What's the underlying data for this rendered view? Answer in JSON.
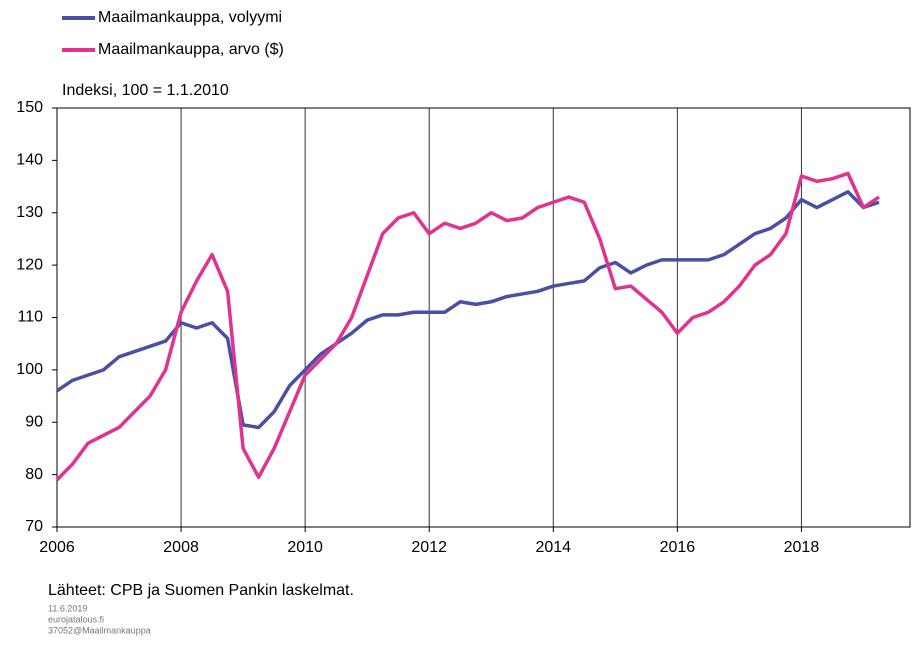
{
  "chart_data": {
    "type": "line",
    "subtitle": "Indeksi, 100 = 1.1.2010",
    "source": "Lähteet: CPB ja Suomen Pankin laskelmat.",
    "footnotes": [
      "11.6.2019",
      "eurojatalous.fi",
      "37052@Maailmankauppa"
    ],
    "x": [
      2006.0,
      2006.25,
      2006.5,
      2006.75,
      2007.0,
      2007.25,
      2007.5,
      2007.75,
      2008.0,
      2008.25,
      2008.5,
      2008.75,
      2009.0,
      2009.25,
      2009.5,
      2009.75,
      2010.0,
      2010.25,
      2010.5,
      2010.75,
      2011.0,
      2011.25,
      2011.5,
      2011.75,
      2012.0,
      2012.25,
      2012.5,
      2012.75,
      2013.0,
      2013.25,
      2013.5,
      2013.75,
      2014.0,
      2014.25,
      2014.5,
      2014.75,
      2015.0,
      2015.25,
      2015.5,
      2015.75,
      2016.0,
      2016.25,
      2016.5,
      2016.75,
      2017.0,
      2017.25,
      2017.5,
      2017.75,
      2018.0,
      2018.25,
      2018.5,
      2018.75,
      2019.0,
      2019.25
    ],
    "series": [
      {
        "name": "Maailmankauppa, volyymi",
        "color": "#4a4fa3",
        "values": [
          96,
          98,
          99,
          100,
          102.5,
          103.5,
          104.5,
          105.5,
          109,
          108,
          109,
          106,
          89.5,
          89,
          92,
          97,
          100,
          103,
          105,
          107,
          109.5,
          110.5,
          110.5,
          111,
          111,
          111,
          113,
          112.5,
          113,
          114,
          114.5,
          115,
          116,
          116.5,
          117,
          119.5,
          120.5,
          118.5,
          120,
          121,
          121,
          121,
          121,
          122,
          124,
          126,
          127,
          129,
          132.5,
          131,
          132.5,
          134,
          131,
          132
        ]
      },
      {
        "name": "Maailmankauppa, arvo ($)",
        "color": "#e0338f",
        "values": [
          79,
          82,
          86,
          87.5,
          89,
          92,
          95,
          100,
          111,
          117,
          122,
          115,
          85,
          79.5,
          85,
          92,
          99,
          102,
          105,
          110,
          118,
          126,
          129,
          130,
          126,
          128,
          127,
          128,
          130,
          128.5,
          129,
          131,
          132,
          133,
          132,
          125,
          115.5,
          116,
          113.5,
          111,
          107,
          110,
          111,
          113,
          116,
          120,
          122,
          126,
          137,
          136,
          136.5,
          137.5,
          131,
          133
        ]
      }
    ],
    "xlim": [
      2006,
      2019.75
    ],
    "xticks": [
      2006,
      2008,
      2010,
      2012,
      2014,
      2016,
      2018
    ],
    "ylim": [
      70,
      150
    ],
    "yticks": [
      70,
      80,
      90,
      100,
      110,
      120,
      130,
      140,
      150
    ],
    "grid": "x"
  }
}
